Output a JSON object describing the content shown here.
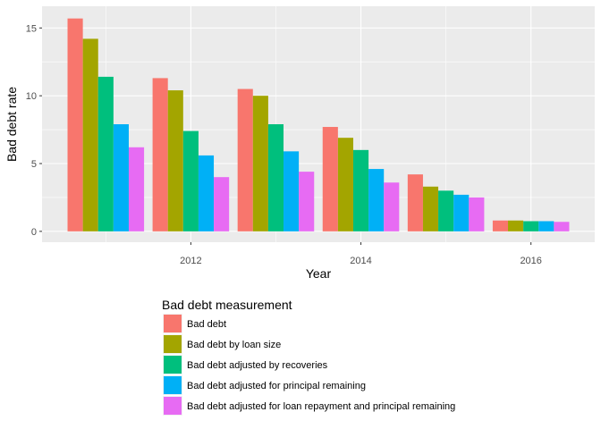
{
  "chart_data": {
    "type": "bar",
    "x": [
      2011,
      2012,
      2013,
      2014,
      2015,
      2016
    ],
    "series": [
      {
        "name": "Bad debt",
        "color": "#F8766D",
        "values": [
          15.7,
          11.3,
          10.5,
          7.7,
          4.2,
          0.8
        ]
      },
      {
        "name": "Bad debt by loan size",
        "color": "#A3A500",
        "values": [
          14.2,
          10.4,
          10.0,
          6.9,
          3.3,
          0.8
        ]
      },
      {
        "name": "Bad debt adjusted by recoveries",
        "color": "#00BF7D",
        "values": [
          11.4,
          7.4,
          7.9,
          6.0,
          3.0,
          0.75
        ]
      },
      {
        "name": "Bad debt adjusted for principal remaining",
        "color": "#00B0F6",
        "values": [
          7.9,
          5.6,
          5.9,
          4.6,
          2.7,
          0.75
        ]
      },
      {
        "name": "Bad debt adjusted for loan repayment and principal remaining",
        "color": "#E76BF3",
        "values": [
          6.2,
          4.0,
          4.4,
          3.6,
          2.5,
          0.7
        ]
      }
    ],
    "xlabel": "Year",
    "ylabel": "Bad debt rate",
    "x_ticks": [
      2012,
      2014,
      2016
    ],
    "y_ticks": [
      0,
      5,
      10,
      15
    ],
    "xlim": [
      2010.25,
      2016.75
    ],
    "ylim": [
      -0.8,
      16.6
    ],
    "grid": true,
    "panel_background": "#EBEBEB",
    "legend_title": "Bad debt measurement",
    "legend_position": "bottom"
  }
}
